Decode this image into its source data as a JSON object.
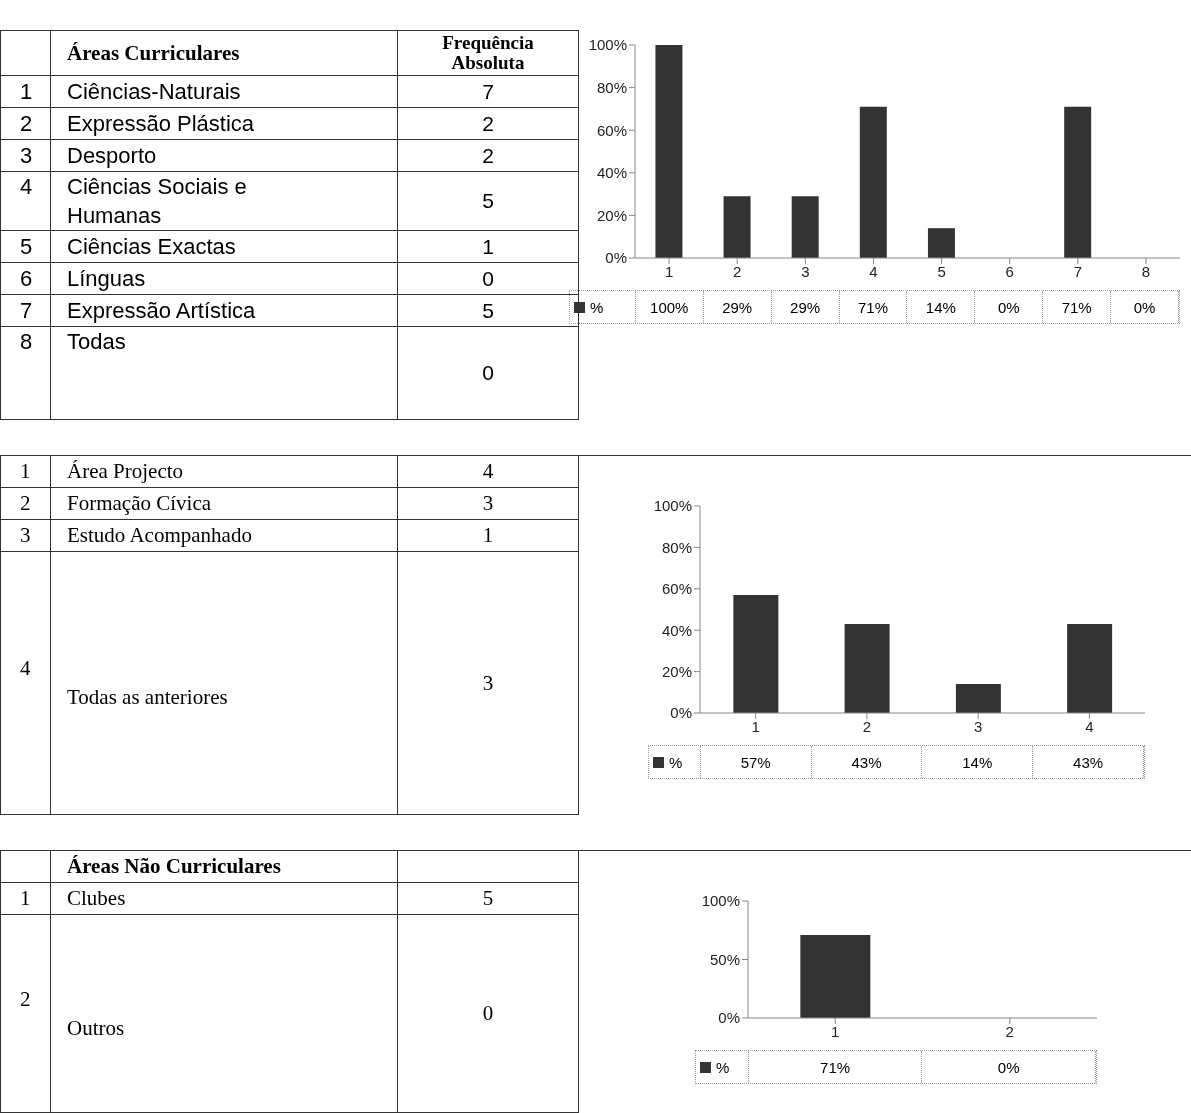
{
  "chart_data": [
    {
      "type": "other",
      "title": "Áreas Curriculares",
      "subtitle": "Frequência Absoluta",
      "annotations": [
        "1",
        "Ciências-Naturais",
        "7",
        "2",
        "Expressão Plástica",
        "2",
        "3",
        "Desporto",
        "2",
        "4",
        "Ciências Sociais e Humanas",
        "5",
        "5",
        "Ciências Exactas",
        "1",
        "6",
        "Línguas",
        "0",
        "7",
        "Expressão Artística",
        "5",
        "8",
        "Todas",
        "0"
      ]
    },
    {
      "type": "bar",
      "categories": [
        "1",
        "2",
        "3",
        "4",
        "5",
        "6",
        "7",
        "8"
      ],
      "series": [
        {
          "name": "%",
          "color": "#333333",
          "values": [
            100,
            29,
            29,
            71,
            14,
            0,
            71,
            0
          ],
          "value_labels": [
            "100%",
            "29%",
            "29%",
            "71%",
            "14%",
            "0%",
            "71%",
            "0%"
          ]
        }
      ],
      "ylim": [
        0,
        100
      ],
      "yticks": [
        {
          "value": 0,
          "label": "0%"
        },
        {
          "value": 20,
          "label": "20%"
        },
        {
          "value": 40,
          "label": "40%"
        },
        {
          "value": 60,
          "label": "60%"
        },
        {
          "value": 80,
          "label": "80%"
        },
        {
          "value": 100,
          "label": "100%"
        }
      ],
      "legend": "bottom left"
    },
    {
      "type": "other",
      "annotations": [
        "1",
        "Área Projecto",
        "4",
        "2",
        "Formação Cívica",
        "3",
        "3",
        "Estudo Acompanhado",
        "1",
        "4",
        "Todas as anteriores",
        "3"
      ]
    },
    {
      "type": "bar",
      "categories": [
        "1",
        "2",
        "3",
        "4"
      ],
      "series": [
        {
          "name": "%",
          "color": "#333333",
          "values": [
            57,
            43,
            14,
            43
          ],
          "value_labels": [
            "57%",
            "43%",
            "14%",
            "43%"
          ]
        }
      ],
      "ylim": [
        0,
        100
      ],
      "yticks": [
        {
          "value": 0,
          "label": "0%"
        },
        {
          "value": 20,
          "label": "20%"
        },
        {
          "value": 40,
          "label": "40%"
        },
        {
          "value": 60,
          "label": "60%"
        },
        {
          "value": 80,
          "label": "80%"
        },
        {
          "value": 100,
          "label": "100%"
        }
      ],
      "legend": "bottom left"
    },
    {
      "type": "other",
      "title": "Áreas Não Curriculares",
      "annotations": [
        "1",
        "Clubes",
        "5",
        "2",
        "Outros",
        "0"
      ]
    },
    {
      "type": "bar",
      "categories": [
        "1",
        "2"
      ],
      "series": [
        {
          "name": "%",
          "color": "#333333",
          "values": [
            71,
            0
          ],
          "value_labels": [
            "71%",
            "0%"
          ]
        }
      ],
      "ylim": [
        0,
        100
      ],
      "yticks": [
        {
          "value": 0,
          "label": "0%"
        },
        {
          "value": 50,
          "label": "50%"
        },
        {
          "value": 100,
          "label": "100%"
        }
      ],
      "legend": "bottom left"
    }
  ]
}
